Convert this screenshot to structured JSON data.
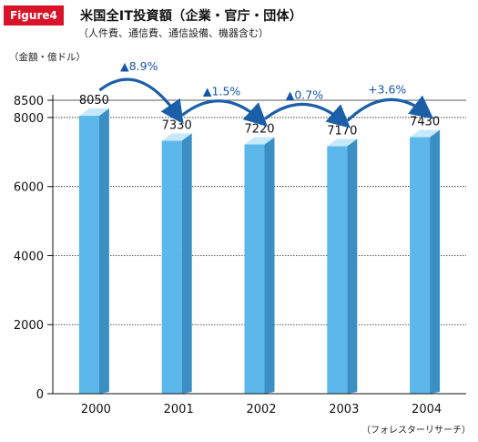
{
  "figure_label": "Figure4",
  "title": "米国全IT投資額（企業・官庁・団体）",
  "subtitle": "（人件費、通信費、通信設備、機器含む）",
  "unit_label": "（金額・億ドル）",
  "source": "（フォレスターリサーチ）",
  "colors": {
    "badge": "#d9142a",
    "bar_front": "#5cb8ea",
    "bar_side": "#3c8fc4",
    "bar_top": "#c6e9fb",
    "arrow": "#1a5fa8"
  },
  "chart_data": {
    "type": "bar",
    "title": "米国全IT投資額（企業・官庁・団体）",
    "ylabel": "（金額・億ドル）",
    "categories": [
      "2000",
      "2001",
      "2002",
      "2003",
      "2004"
    ],
    "values": [
      8050,
      7330,
      7220,
      7170,
      7430
    ],
    "value_labels": [
      "8050",
      "7330",
      "7220",
      "7170",
      "7430"
    ],
    "yticks": [
      0,
      2000,
      4000,
      6000,
      8000,
      8500
    ],
    "ylim": [
      0,
      8500
    ],
    "grid": "horizontal",
    "growth_annotations": [
      "▲8.9%",
      "▲1.5%",
      "▲0.7%",
      "+3.6%"
    ]
  }
}
